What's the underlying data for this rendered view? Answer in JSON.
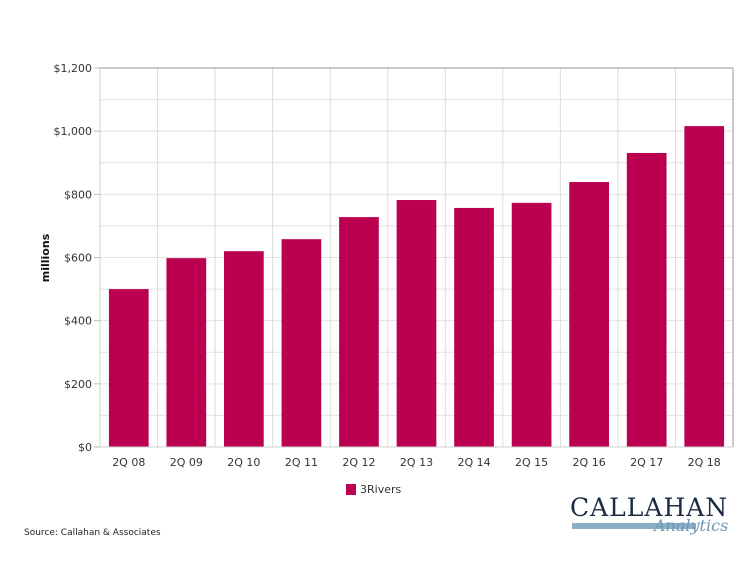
{
  "chart_data": {
    "type": "bar",
    "title": "",
    "xlabel": "",
    "ylabel": "millions",
    "ylim": [
      0,
      1200
    ],
    "yticks": [
      0,
      200,
      400,
      600,
      800,
      1000,
      1200
    ],
    "ytick_labels": [
      "$0",
      "$200",
      "$400",
      "$600",
      "$800",
      "$1,000",
      "$1,200"
    ],
    "minor_grid_step": 100,
    "grid": true,
    "categories": [
      "2Q 08",
      "2Q 09",
      "2Q 10",
      "2Q 11",
      "2Q 12",
      "2Q 13",
      "2Q 14",
      "2Q 15",
      "2Q 16",
      "2Q 17",
      "2Q 18"
    ],
    "series": [
      {
        "name": "3Rivers",
        "color": "#bb0052",
        "values": [
          500,
          598,
          620,
          658,
          728,
          782,
          757,
          773,
          839,
          931,
          1016
        ]
      }
    ],
    "legend": {
      "position": "bottom-center",
      "entries": [
        "3Rivers"
      ]
    }
  },
  "footer": {
    "source": "Source: Callahan & Associates",
    "logo_main": "CALLAHAN",
    "logo_sub": "Analytics"
  }
}
